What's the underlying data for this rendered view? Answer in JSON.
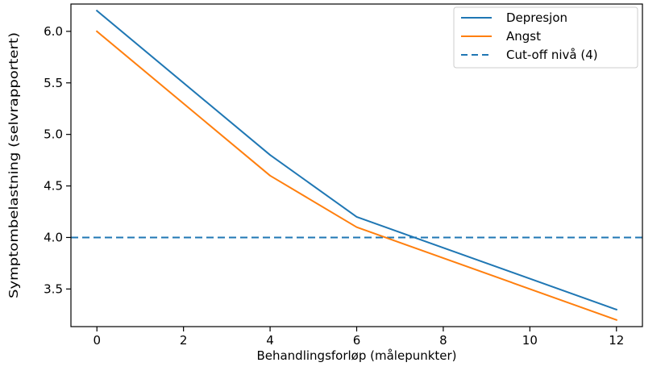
{
  "chart_data": {
    "type": "line",
    "title": "",
    "xlabel": "Behandlingsforløp (målepunkter)",
    "ylabel": "Symptombelastning (selvrapportert)",
    "x": [
      0,
      4,
      6,
      12
    ],
    "series": [
      {
        "name": "Depresjon",
        "values": [
          6.2,
          4.8,
          4.2,
          3.3
        ],
        "color": "#1f77b4",
        "style": "solid"
      },
      {
        "name": "Angst",
        "values": [
          6.0,
          4.6,
          4.1,
          3.2
        ],
        "color": "#ff7f0e",
        "style": "solid"
      }
    ],
    "reference_lines": [
      {
        "name": "Cut-off nivå (4)",
        "y": 4.0,
        "color": "#1f77b4",
        "style": "dashed"
      }
    ],
    "xlim": [
      -0.6,
      12.6
    ],
    "ylim": [
      3.135,
      6.265
    ],
    "xticks": [
      0,
      2,
      4,
      6,
      8,
      10,
      12
    ],
    "xtick_labels": [
      "0",
      "2",
      "4",
      "6",
      "8",
      "10",
      "12"
    ],
    "yticks": [
      3.5,
      4.0,
      4.5,
      5.0,
      5.5,
      6.0
    ],
    "ytick_labels": [
      "3.5",
      "4.0",
      "4.5",
      "5.0",
      "5.5",
      "6.0"
    ],
    "grid": false,
    "legend_position": "top-right"
  }
}
